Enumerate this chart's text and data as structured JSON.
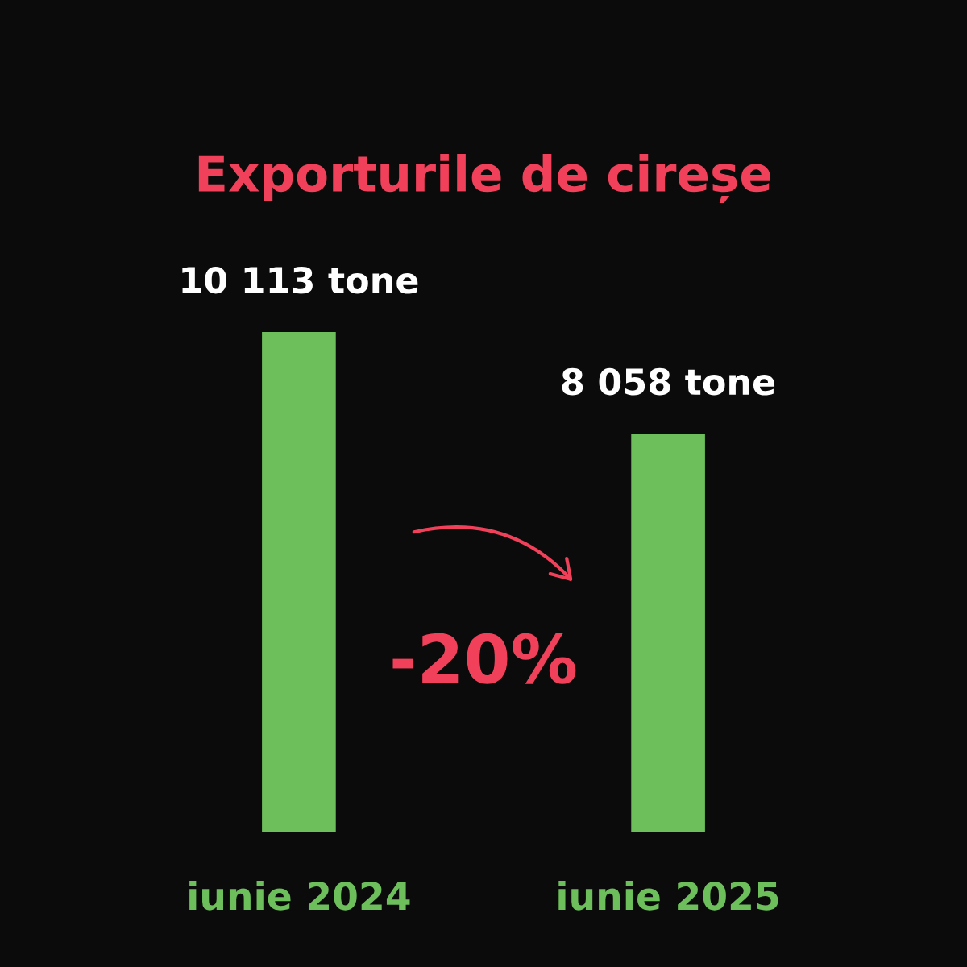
{
  "chart_data": {
    "type": "bar",
    "title": "Exporturile de cireșe",
    "categories": [
      "iunie 2024",
      "iunie 2025"
    ],
    "values": [
      10113,
      8058
    ],
    "value_labels": [
      "10 113 tone",
      "8 058 tone"
    ],
    "color": "#6cbf5a",
    "annotations": [
      "-20%"
    ]
  }
}
